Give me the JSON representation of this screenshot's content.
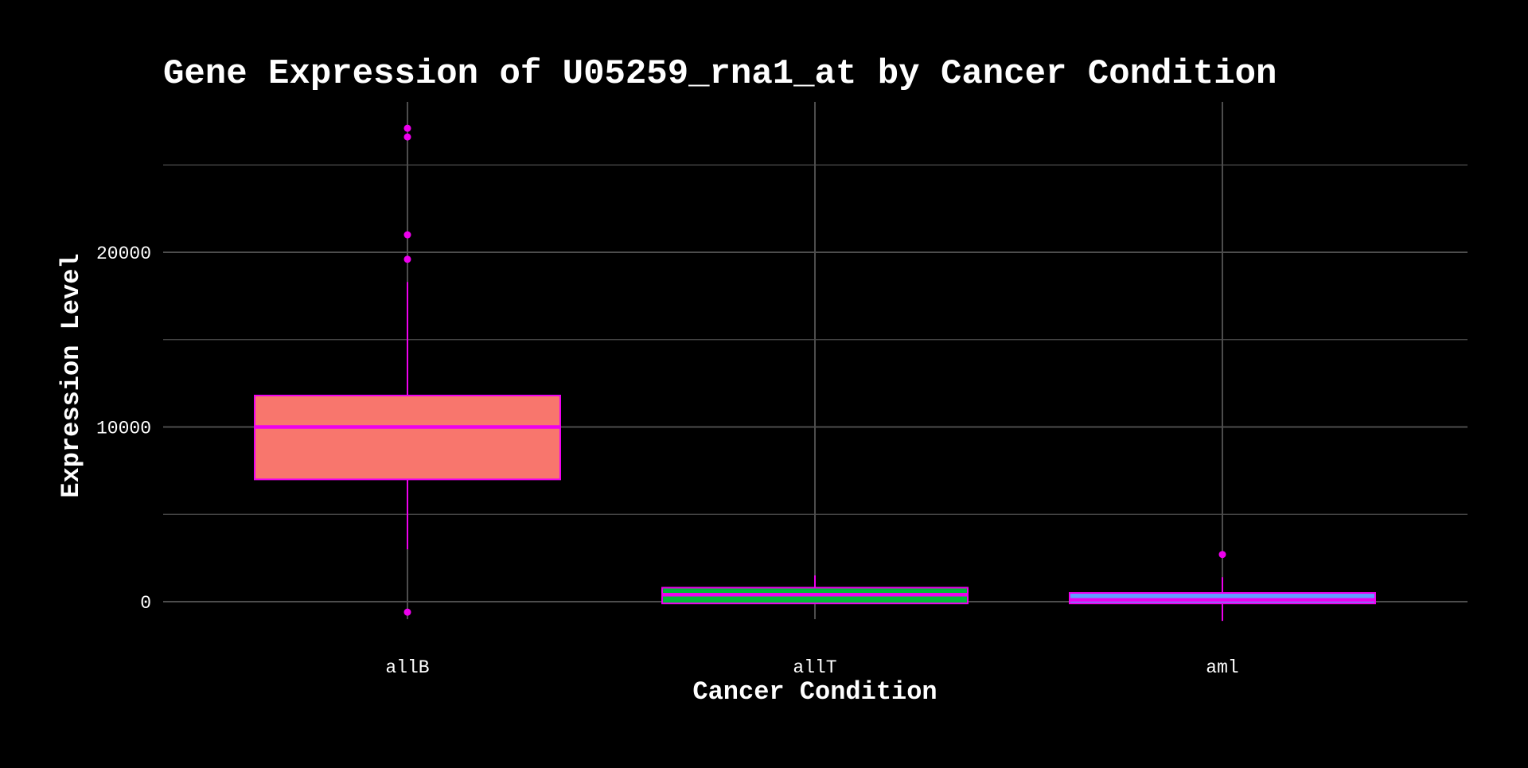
{
  "chart_data": {
    "type": "box",
    "title": "Gene Expression of U05259_rna1_at by Cancer Condition",
    "xlabel": "Cancer Condition",
    "ylabel": "Expression Level",
    "categories": [
      "allB",
      "allT",
      "aml"
    ],
    "ylim": [
      -2500,
      28600
    ],
    "yticks": [
      0,
      10000,
      20000
    ],
    "ytick_labels": [
      "0",
      "10000",
      "20000"
    ],
    "minor_gridlines": [
      5000,
      15000,
      25000
    ],
    "grid": true,
    "legend": "none",
    "boxes": [
      {
        "category": "allB",
        "q1": 7000,
        "median": 10000,
        "q3": 11800,
        "whisker_low": 3000,
        "whisker_high": 18300,
        "outliers": [
          -600,
          19600,
          21000,
          26600,
          27100
        ],
        "fill": "#f8766d"
      },
      {
        "category": "allT",
        "q1": -100,
        "median": 400,
        "q3": 800,
        "whisker_low": -100,
        "whisker_high": 1500,
        "outliers": [],
        "fill": "#00ba38"
      },
      {
        "category": "aml",
        "q1": -100,
        "median": 100,
        "q3": 500,
        "whisker_low": -1100,
        "whisker_high": 1400,
        "outliers": [
          2700
        ],
        "fill": "#619cff"
      }
    ],
    "colors": {
      "background": "#000000",
      "grid": "#4d4d4d",
      "outline": "#ee00ee",
      "text": "#ffffff"
    }
  }
}
